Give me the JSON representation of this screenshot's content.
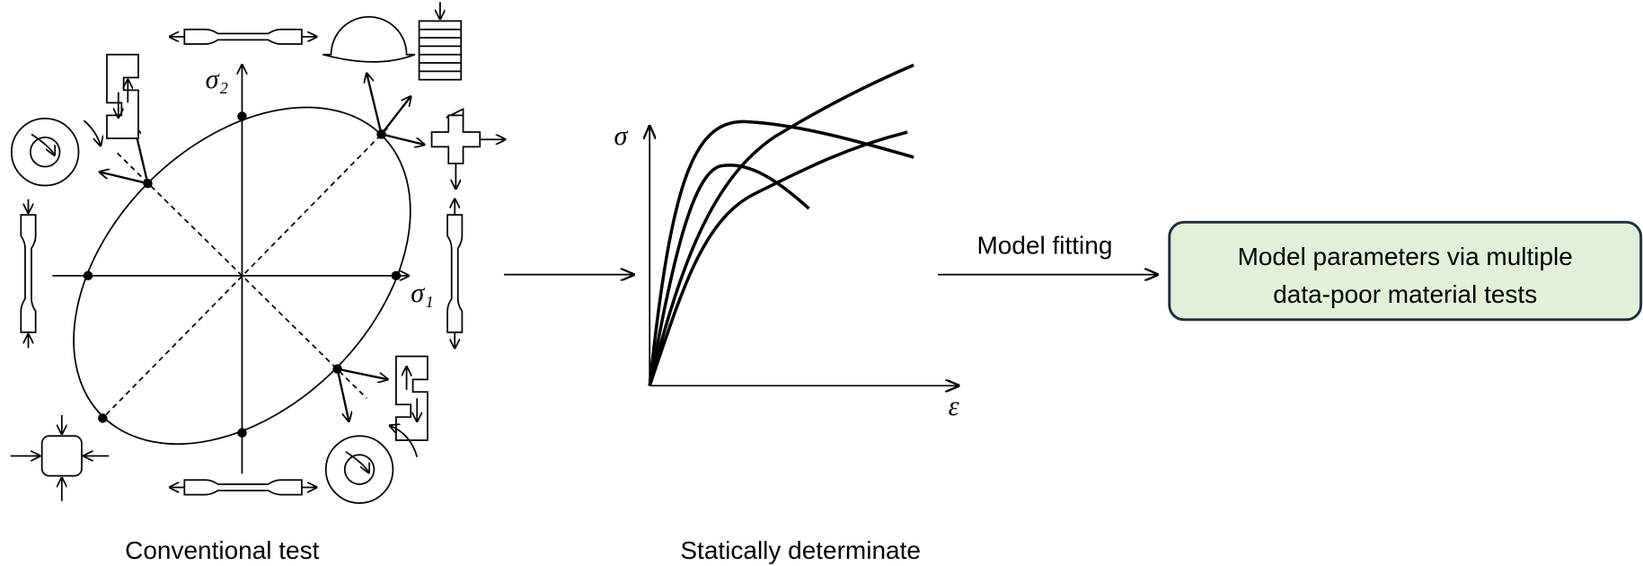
{
  "axis_labels": {
    "sigma_2": "σ₂",
    "sigma_1": "σ₁",
    "stress": "σ",
    "strain": "ε"
  },
  "arrow_label": "Model fitting",
  "result_box": {
    "lines": [
      "Model parameters via multiple",
      "data-poor material tests"
    ]
  },
  "captions": {
    "left": "Conventional test",
    "middle": "Statically determinate"
  }
}
